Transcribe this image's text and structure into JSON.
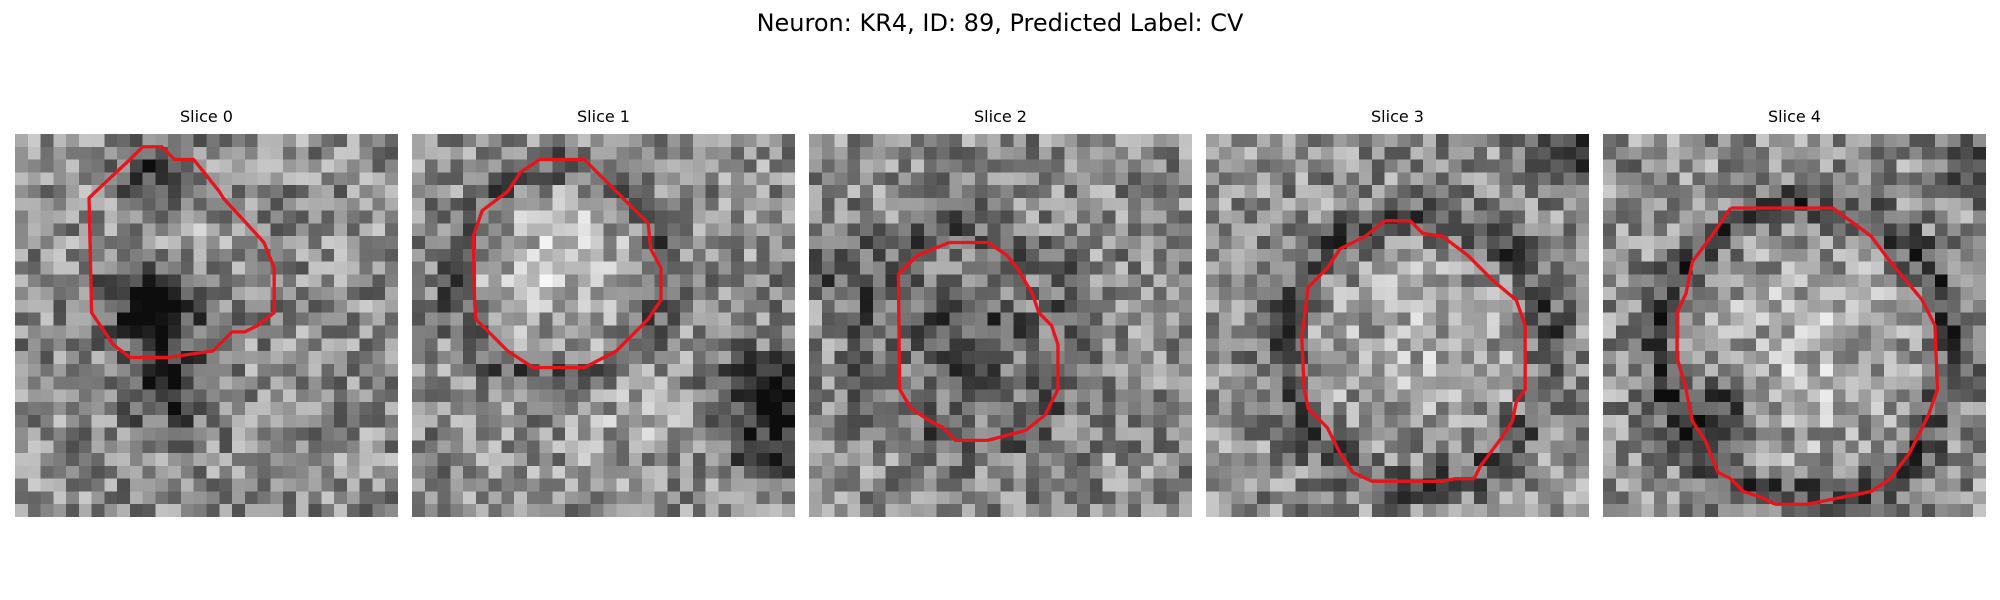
{
  "figure": {
    "title": "Neuron: KR4, ID: 89, Predicted Label: CV"
  },
  "panels": [
    {
      "title": "Slice 0"
    },
    {
      "title": "Slice 1"
    },
    {
      "title": "Slice 2"
    },
    {
      "title": "Slice 3"
    },
    {
      "title": "Slice 4"
    }
  ],
  "colors": {
    "contour": "#e8141c",
    "background": "#ffffff"
  }
}
